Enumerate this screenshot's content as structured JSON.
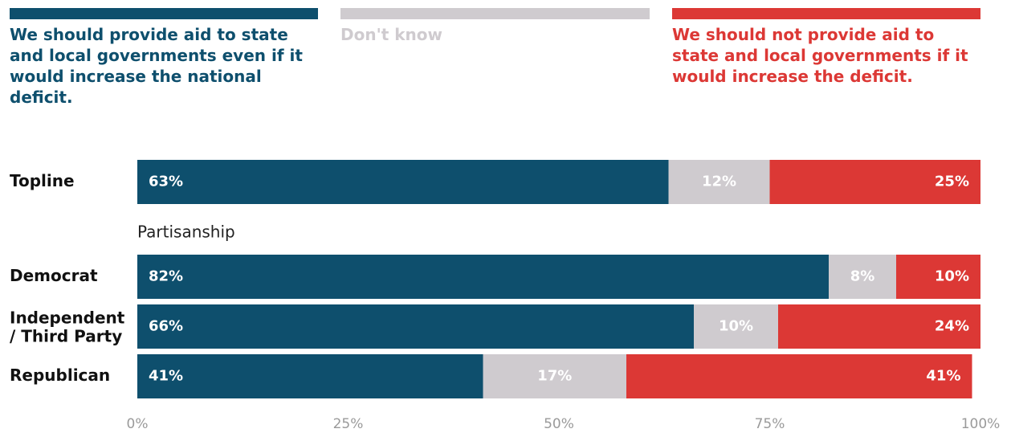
{
  "colors": {
    "support": "#0e4f6d",
    "dont_know": "#cfcbcf",
    "oppose": "#dc3835"
  },
  "legend": [
    {
      "key": "support",
      "label": "We should provide aid to state and local governments even if it would increase the national deficit."
    },
    {
      "key": "dont_know",
      "label": "Don't know"
    },
    {
      "key": "oppose",
      "label": "We should not provide aid to state and local governments if it would increase the deficit."
    }
  ],
  "chart_data": {
    "type": "bar",
    "orientation": "horizontal",
    "stacked": true,
    "categories": [
      "Topline",
      "Democrat",
      "Independent / Third Party",
      "Republican"
    ],
    "group_label": "Partisanship",
    "series": [
      {
        "name": "We should provide aid to state and local governments even if it would increase the national deficit.",
        "values": [
          63,
          82,
          66,
          41
        ]
      },
      {
        "name": "Don't know",
        "values": [
          12,
          8,
          10,
          17
        ]
      },
      {
        "name": "We should not provide aid to state and local governments if it would increase the deficit.",
        "values": [
          25,
          10,
          24,
          41
        ]
      }
    ],
    "xlim": [
      0,
      100
    ],
    "x_ticks": [
      "0%",
      "25%",
      "50%",
      "75%",
      "100%"
    ],
    "value_suffix": "%",
    "grid": false,
    "legend_position": "top"
  }
}
